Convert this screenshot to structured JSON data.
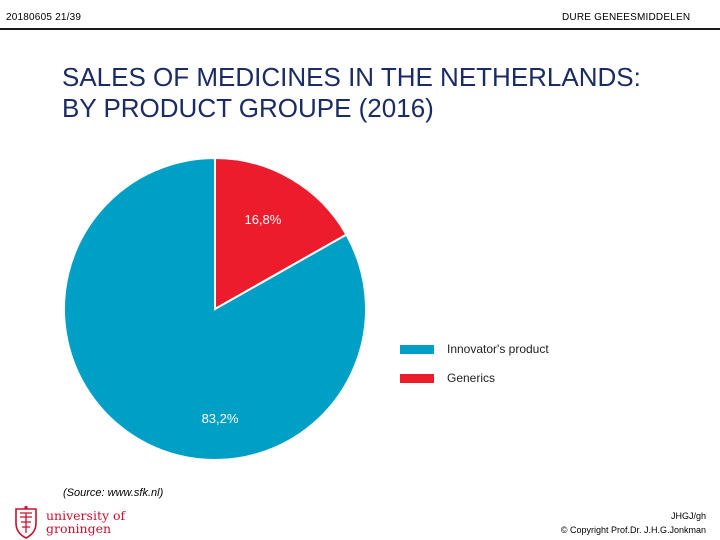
{
  "header": {
    "date_slide": "20180605   21/39",
    "section": "DURE GENEESMIDDELEN"
  },
  "title": {
    "line1": "SALES OF MEDICINES IN THE NETHERLANDS:",
    "line2": "BY PRODUCT GROUPE (2016)"
  },
  "chart_data": {
    "type": "pie",
    "title": "SALES OF MEDICINES IN THE NETHERLANDS: BY PRODUCT GROUPE (2016)",
    "slices": [
      {
        "name": "Innovator's product",
        "value": 83.2,
        "label": "83,2%",
        "color": "#00a0c6"
      },
      {
        "name": "Generics",
        "value": 16.8,
        "label": "16,8%",
        "color": "#ec1c2d"
      }
    ],
    "start_angle_deg": 0,
    "direction": "counterclockwise-first-slice-ends-at-top",
    "legend_position": "right"
  },
  "source": "(Source: www.sfk.nl)",
  "logo": {
    "line1": "university of",
    "line2": "groningen"
  },
  "footer": {
    "initials": "JHGJ/gh",
    "copyright": "© Copyright Prof.Dr. J.H.G.Jonkman"
  }
}
